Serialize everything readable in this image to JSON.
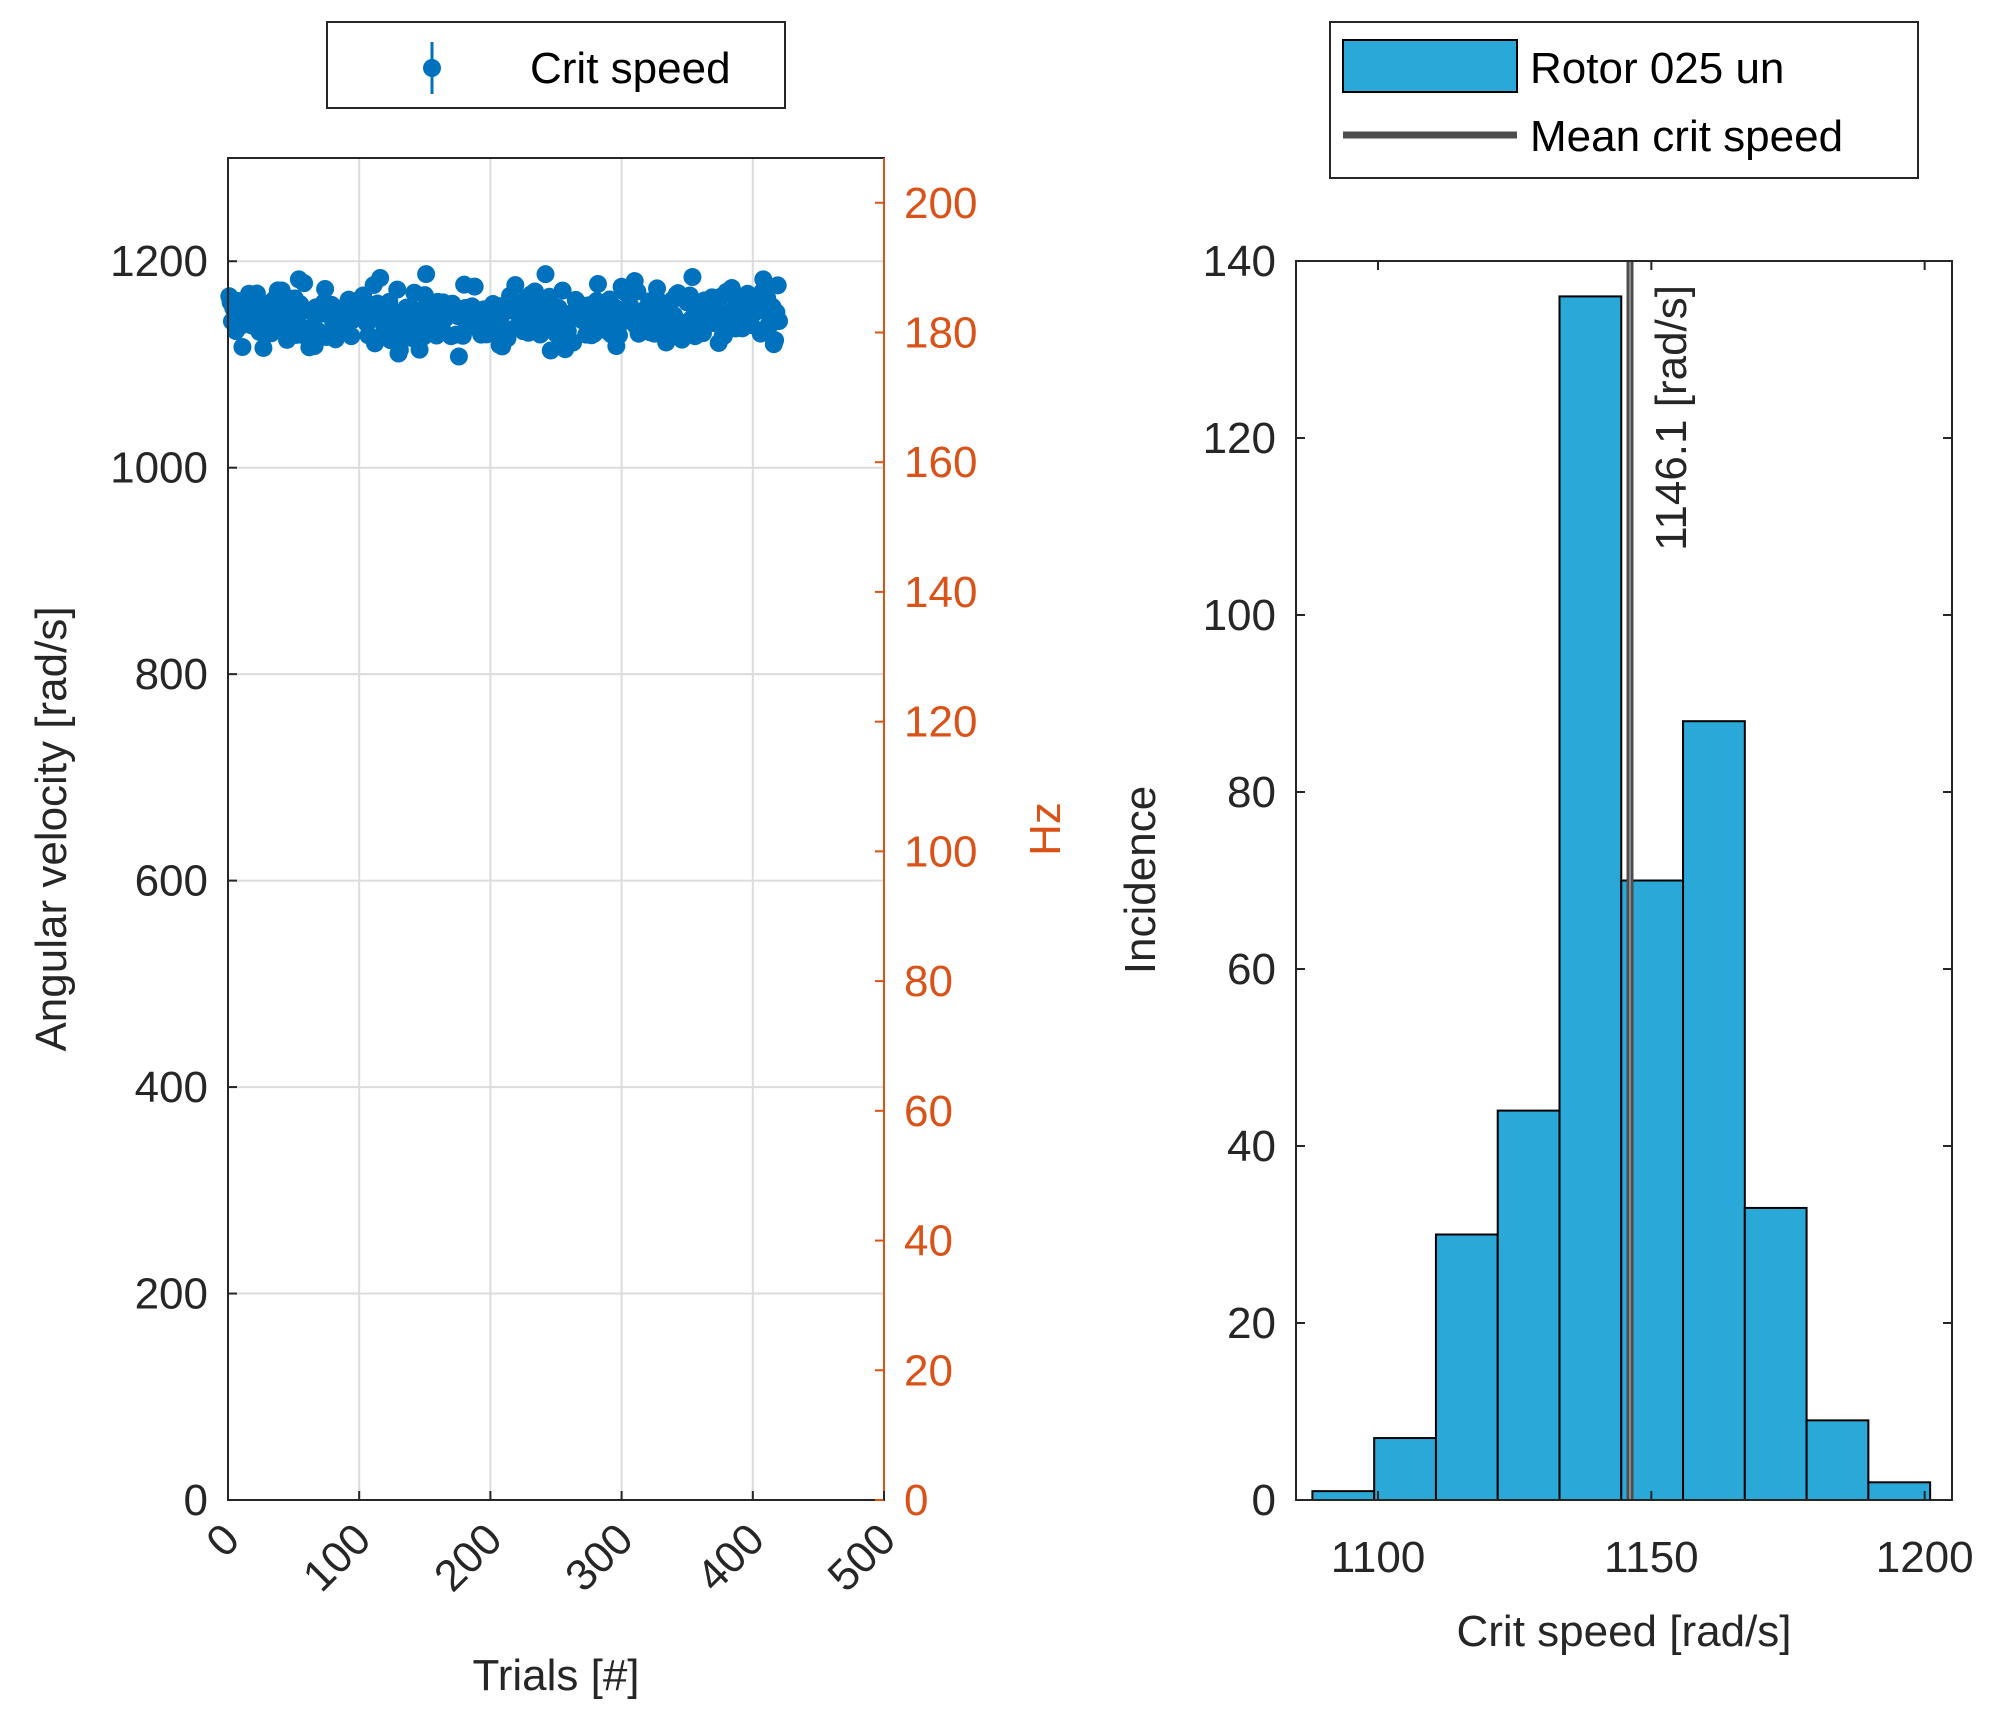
{
  "chart_data": [
    {
      "type": "scatter",
      "legend": {
        "entries": [
          "Crit speed"
        ],
        "placement": "top"
      },
      "xlabel": "Trials [#]",
      "ylabel": "Angular velocity [rad/s]",
      "ylabel_right": "Hz",
      "xlim": [
        0,
        500
      ],
      "ylim": [
        0,
        1300
      ],
      "ylim_right": [
        0,
        206.9
      ],
      "xticks": [
        "0",
        "100",
        "200",
        "300",
        "400",
        "500"
      ],
      "yticks": [
        "0",
        "200",
        "400",
        "600",
        "800",
        "1000",
        "1200"
      ],
      "yticks_right": [
        "0",
        "20",
        "40",
        "60",
        "80",
        "100",
        "120",
        "140",
        "160",
        "180",
        "200"
      ],
      "grid": true,
      "series": [
        {
          "name": "Crit speed",
          "n_points": 420,
          "mean": 1146.1,
          "y_min": 1093,
          "y_max": 1192
        }
      ],
      "colors": {
        "points": "#0072BD",
        "right_axis": "#D95319",
        "grid": "#dcdcdc",
        "axis": "#262626"
      }
    },
    {
      "type": "bar",
      "legend": {
        "entries": [
          "Rotor 025 un",
          "Mean crit speed"
        ],
        "placement": "top"
      },
      "xlabel": "Crit speed [rad/s]",
      "ylabel": "Incidence",
      "xlim": [
        1085,
        1205
      ],
      "ylim": [
        0,
        140
      ],
      "xticks": [
        "1100",
        "1150",
        "1200"
      ],
      "yticks": [
        "0",
        "20",
        "40",
        "60",
        "80",
        "100",
        "120",
        "140"
      ],
      "bin_edges": [
        1088,
        1099.3,
        1110.6,
        1121.9,
        1133.2,
        1144.5,
        1155.8,
        1167.1,
        1178.4,
        1189.7,
        1201
      ],
      "values": [
        1,
        7,
        30,
        44,
        136,
        70,
        88,
        33,
        9,
        2
      ],
      "series_name": "Rotor 025 un",
      "mean_line": {
        "name": "Mean crit speed",
        "value": 1146.1
      },
      "annotation": "1146.1 [rad/s]",
      "colors": {
        "bars": "#2AA8D8",
        "bar_edge": "#000000",
        "mean_line": "#4d4d4d",
        "axis": "#262626"
      }
    }
  ]
}
